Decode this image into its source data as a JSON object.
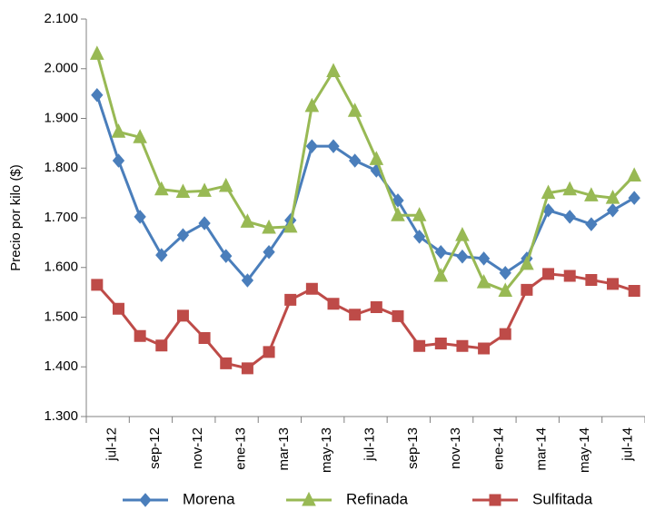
{
  "chart_data": {
    "type": "line",
    "y_label": "Precio por kilo ($)",
    "categories": [
      "jul-12",
      null,
      "sep-12",
      null,
      "nov-12",
      null,
      "ene-13",
      null,
      "mar-13",
      null,
      "may-13",
      null,
      "jul-13",
      null,
      "sep-13",
      null,
      "nov-13",
      null,
      "ene-14",
      null,
      "mar-14",
      null,
      "may-14",
      null,
      "jul-14",
      null
    ],
    "series": [
      {
        "name": "Morena",
        "color": "#4a7ebb",
        "marker": "diamond",
        "values": [
          1.947,
          1.815,
          1.702,
          1.625,
          1.665,
          1.689,
          1.623,
          1.574,
          1.631,
          1.695,
          1.844,
          1.844,
          1.815,
          1.795,
          1.735,
          1.662,
          1.631,
          1.622,
          1.618,
          1.589,
          1.618,
          1.715,
          1.702,
          1.687,
          1.715,
          1.74
        ]
      },
      {
        "name": "Refinada",
        "color": "#98b954",
        "marker": "triangle",
        "values": [
          2.03,
          1.873,
          1.862,
          1.757,
          1.752,
          1.754,
          1.764,
          1.692,
          1.68,
          1.682,
          1.925,
          1.995,
          1.915,
          1.818,
          1.705,
          1.705,
          1.583,
          1.665,
          1.57,
          1.553,
          1.607,
          1.75,
          1.757,
          1.745,
          1.74,
          1.785
        ]
      },
      {
        "name": "Sulfitada",
        "color": "#be4b48",
        "marker": "square",
        "values": [
          1.565,
          1.517,
          1.462,
          1.443,
          1.503,
          1.458,
          1.407,
          1.397,
          1.43,
          1.535,
          1.557,
          1.527,
          1.505,
          1.52,
          1.502,
          1.442,
          1.447,
          1.442,
          1.437,
          1.466,
          1.555,
          1.587,
          1.583,
          1.575,
          1.567,
          1.553
        ]
      }
    ],
    "ylim": [
      1.3,
      2.1
    ],
    "yticks": [
      {
        "value": 1.3,
        "label": "1.300"
      },
      {
        "value": 1.4,
        "label": "1.400"
      },
      {
        "value": 1.5,
        "label": "1.500"
      },
      {
        "value": 1.6,
        "label": "1.600"
      },
      {
        "value": 1.7,
        "label": "1.700"
      },
      {
        "value": 1.8,
        "label": "1.800"
      },
      {
        "value": 1.9,
        "label": "1.900"
      },
      {
        "value": 2.0,
        "label": "2.000"
      },
      {
        "value": 2.1,
        "label": "2.100"
      }
    ],
    "grid": false,
    "legend": "bottom"
  }
}
